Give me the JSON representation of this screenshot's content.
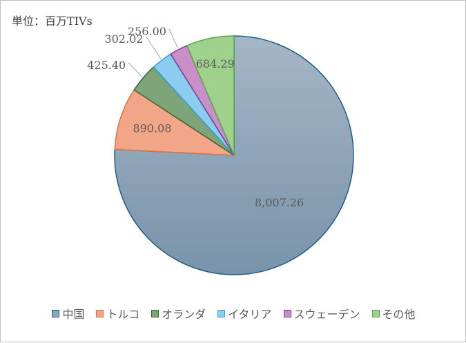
{
  "unit_label": "単位：百万TIVs",
  "chart_data": {
    "type": "pie",
    "title": "",
    "categories": [
      "中国",
      "トルコ",
      "オランダ",
      "イタリア",
      "スウェーデン",
      "その他"
    ],
    "values": [
      8007.26,
      890.08,
      425.4,
      302.02,
      256.0,
      684.29
    ],
    "value_labels": [
      "8,007.26",
      "890.08",
      "425.40",
      "302.02",
      "256.00",
      "684.29"
    ],
    "colors": {
      "fills": [
        "#8fa6bb",
        "#f3a588",
        "#7ea579",
        "#8cccf0",
        "#c990c8",
        "#9fd18c"
      ],
      "strokes": [
        "#1f5c82",
        "#e8703e",
        "#2e6b2c",
        "#2a9fd8",
        "#7f3a8f",
        "#5aa54a"
      ]
    },
    "legend_position": "bottom",
    "start_angle": "12 o'clock, clockwise from last slice"
  }
}
